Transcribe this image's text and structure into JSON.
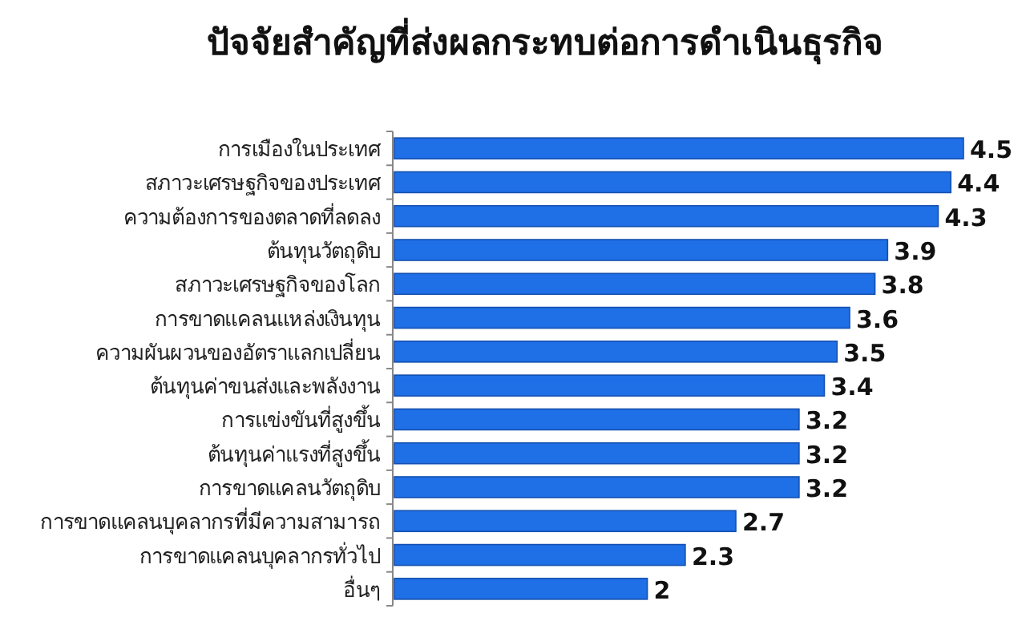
{
  "chart_data": {
    "type": "bar",
    "orientation": "horizontal",
    "title": "ปัจจัยสำคัญที่ส่งผลกระทบต่อการดำเนินธุรกิจ",
    "categories": [
      "การเมืองในประเทศ",
      "สภาวะเศรษฐกิจของประเทศ",
      "ความต้องการของตลาดที่ลดลง",
      "ต้นทุนวัตถุดิบ",
      "สภาวะเศรษฐกิจของโลก",
      "การขาดแคลนแหล่งเงินทุน",
      "ความผันผวนของอัตราแลกเปลี่ยน",
      "ต้นทุนค่าขนส่งและพลังงาน",
      "การแข่งขันที่สูงขึ้น",
      "ต้นทุนค่าแรงที่สูงขึ้น",
      "การขาดแคลนวัตถุดิบ",
      "การขาดแคลนบุคลากรที่มีความสามารถ",
      "การขาดแคลนบุคลากรทั่วไป",
      "อื่นๆ"
    ],
    "values": [
      4.5,
      4.4,
      4.3,
      3.9,
      3.8,
      3.6,
      3.5,
      3.4,
      3.2,
      3.2,
      3.2,
      2.7,
      2.3,
      2
    ],
    "color": "#1f6fe6",
    "data_labels": true
  }
}
